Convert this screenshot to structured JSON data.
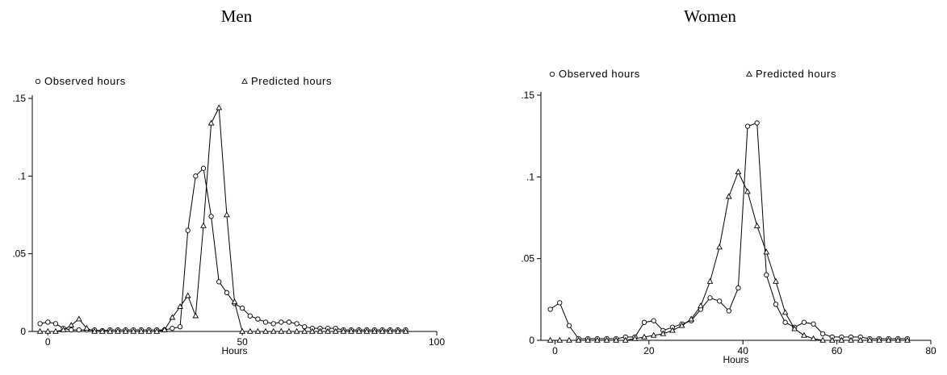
{
  "chart_data": [
    {
      "type": "line",
      "title": "Men",
      "xlabel": "Hours",
      "ylabel": "",
      "xlim": [
        -4,
        100
      ],
      "ylim": [
        0,
        0.15
      ],
      "xticks": [
        0,
        50,
        100
      ],
      "xtick_labels": [
        "0",
        "50",
        "100"
      ],
      "yticks": [
        0,
        0.05,
        0.1,
        0.15
      ],
      "ytick_labels": [
        "0",
        ".05",
        ".1",
        ".15"
      ],
      "legend_position": "top",
      "grid": false,
      "series": [
        {
          "name": "Observed hours",
          "marker": "circle",
          "x": [
            -2,
            0,
            2,
            4,
            6,
            8,
            10,
            12,
            14,
            16,
            18,
            20,
            22,
            24,
            26,
            28,
            30,
            32,
            34,
            36,
            38,
            40,
            42,
            44,
            46,
            48,
            50,
            52,
            54,
            56,
            58,
            60,
            62,
            64,
            66,
            68,
            70,
            72,
            74,
            76,
            78,
            80,
            82,
            84,
            86,
            88,
            90,
            92
          ],
          "y": [
            0.005,
            0.006,
            0.005,
            0.002,
            0.001,
            0.001,
            0.001,
            0.001,
            0.0005,
            0.001,
            0.001,
            0.001,
            0.001,
            0.001,
            0.001,
            0.001,
            0.001,
            0.002,
            0.003,
            0.065,
            0.1,
            0.105,
            0.074,
            0.032,
            0.025,
            0.018,
            0.015,
            0.01,
            0.008,
            0.006,
            0.005,
            0.006,
            0.006,
            0.005,
            0.003,
            0.002,
            0.002,
            0.002,
            0.002,
            0.001,
            0.001,
            0.001,
            0.001,
            0.001,
            0.001,
            0.001,
            0.001,
            0.001
          ]
        },
        {
          "name": "Predicted hours",
          "marker": "triangle",
          "x": [
            -2,
            0,
            2,
            4,
            6,
            8,
            10,
            12,
            14,
            16,
            18,
            20,
            22,
            24,
            26,
            28,
            30,
            32,
            34,
            36,
            38,
            40,
            42,
            44,
            46,
            48,
            50,
            52,
            54,
            56,
            58,
            60,
            62,
            64,
            66,
            68,
            70,
            72,
            74,
            76,
            78,
            80,
            82,
            84,
            86,
            88,
            90,
            92
          ],
          "y": [
            0,
            0,
            0,
            0.001,
            0.004,
            0.008,
            0.002,
            0,
            0,
            0,
            0,
            0,
            0,
            0,
            0,
            0,
            0.001,
            0.009,
            0.016,
            0.023,
            0.01,
            0.068,
            0.134,
            0.144,
            0.075,
            0.019,
            0,
            0,
            0,
            0,
            0,
            0,
            0,
            0,
            0,
            0,
            0,
            0,
            0,
            0,
            0,
            0,
            0,
            0,
            0,
            0,
            0,
            0
          ]
        }
      ]
    },
    {
      "type": "line",
      "title": "Women",
      "xlabel": "Hours",
      "ylabel": "",
      "xlim": [
        -3,
        80
      ],
      "ylim": [
        0,
        0.15
      ],
      "xticks": [
        0,
        20,
        40,
        60,
        80
      ],
      "xtick_labels": [
        "0",
        "20",
        "40",
        "60",
        "80"
      ],
      "yticks": [
        0,
        0.05,
        0.1,
        0.15
      ],
      "ytick_labels": [
        "0",
        ".05",
        ".1",
        ".15"
      ],
      "legend_position": "top",
      "grid": false,
      "series": [
        {
          "name": "Observed hours",
          "marker": "circle",
          "x": [
            -1,
            1,
            3,
            5,
            7,
            9,
            11,
            13,
            15,
            17,
            19,
            21,
            23,
            25,
            27,
            29,
            31,
            33,
            35,
            37,
            39,
            41,
            43,
            45,
            47,
            49,
            51,
            53,
            55,
            57,
            59,
            61,
            63,
            65,
            67,
            69,
            71,
            73,
            75
          ],
          "y": [
            0.019,
            0.023,
            0.009,
            0.001,
            0.001,
            0.001,
            0.001,
            0.001,
            0.002,
            0.002,
            0.011,
            0.012,
            0.006,
            0.008,
            0.01,
            0.012,
            0.019,
            0.026,
            0.024,
            0.018,
            0.032,
            0.131,
            0.133,
            0.04,
            0.022,
            0.011,
            0.008,
            0.011,
            0.01,
            0.004,
            0.002,
            0.002,
            0.002,
            0.002,
            0.001,
            0.001,
            0.001,
            0.001,
            0.001
          ]
        },
        {
          "name": "Predicted hours",
          "marker": "triangle",
          "x": [
            -1,
            1,
            3,
            5,
            7,
            9,
            11,
            13,
            15,
            17,
            19,
            21,
            23,
            25,
            27,
            29,
            31,
            33,
            35,
            37,
            39,
            41,
            43,
            45,
            47,
            49,
            51,
            53,
            55,
            57,
            59,
            61,
            63,
            65,
            67,
            69,
            71,
            73,
            75
          ],
          "y": [
            0,
            0,
            0,
            0,
            0,
            0,
            0,
            0,
            0,
            0.001,
            0.002,
            0.003,
            0.004,
            0.006,
            0.009,
            0.013,
            0.021,
            0.036,
            0.057,
            0.088,
            0.103,
            0.091,
            0.07,
            0.054,
            0.036,
            0.017,
            0.007,
            0.003,
            0.001,
            0,
            0,
            0,
            0,
            0,
            0,
            0,
            0,
            0,
            0
          ]
        }
      ]
    }
  ]
}
